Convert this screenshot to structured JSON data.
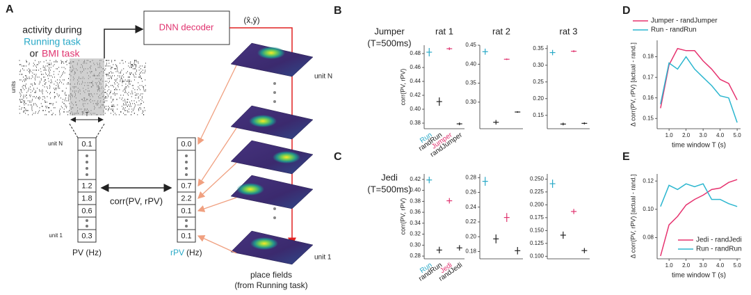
{
  "panel_letters": [
    "A",
    "B",
    "C",
    "D",
    "E"
  ],
  "panel_a": {
    "activity": [
      "activity during",
      "Running task",
      "or",
      "BMI task"
    ],
    "units_label": "units",
    "window": "T",
    "decoder": "DNN decoder",
    "output": "(x̂,ŷ)",
    "pv_units": [
      "unit N",
      "unit 1"
    ],
    "pv": [
      "0.1",
      "1.2",
      "1.8",
      "0.6",
      "0.3"
    ],
    "rpv": [
      "0.0",
      "0.7",
      "2.2",
      "0.1",
      "0.1"
    ],
    "corr": "corr(PV, rPV)",
    "pv_label": "PV (Hz)",
    "rpv_label": "rPV",
    "rpv_unit": "(Hz)",
    "stack_units": [
      "unit N",
      "unit 1"
    ],
    "place_fields": [
      "place fields",
      "(from Running task)"
    ]
  },
  "row_labels": [
    [
      "Jumper",
      "(T=500ms)"
    ],
    [
      "Jedi",
      "(T=500ms)"
    ]
  ],
  "chart_data": [
    {
      "type": "errorbar",
      "title": "rat 1",
      "ylabel": "corr(PV, rPV)",
      "categories": [
        "Run",
        "randRun",
        "Jumper",
        "randJumper"
      ],
      "colors": [
        "#29a9c7",
        "#222222",
        "#e0336f",
        "#222222"
      ],
      "values": [
        0.482,
        0.411,
        0.487,
        0.379
      ],
      "errors": [
        0.006,
        0.006,
        0.002,
        0.002
      ],
      "ylim": [
        0.372,
        0.492
      ],
      "yticks": [
        0.38,
        {
          "value": 0.4,
          "label": "0.40"
        },
        0.42,
        0.44,
        0.46,
        0.48
      ]
    },
    {
      "type": "errorbar",
      "title": "rat 2",
      "categories": [
        null,
        null,
        null,
        null
      ],
      "colors": [
        "#29a9c7",
        "#222222",
        "#e0336f",
        "#222222"
      ],
      "values": [
        0.433,
        0.247,
        0.413,
        0.274
      ],
      "errors": [
        0.008,
        0.006,
        0.002,
        0.002
      ],
      "ylim": [
        0.23,
        0.45
      ],
      "yticks": [
        {
          "value": 0.3,
          "label": "0.30"
        },
        0.35,
        {
          "value": 0.4,
          "label": "0.40"
        },
        0.45
      ]
    },
    {
      "type": "errorbar",
      "title": "rat 3",
      "categories": [
        null,
        null,
        null,
        null
      ],
      "colors": [
        "#29a9c7",
        "#222222",
        "#e0336f",
        "#222222"
      ],
      "values": [
        0.338,
        0.124,
        0.342,
        0.126
      ],
      "errors": [
        0.008,
        0.004,
        0.003,
        0.003
      ],
      "ylim": [
        0.11,
        0.36
      ],
      "yticks": [
        0.15,
        {
          "value": 0.2,
          "label": "0.20"
        },
        0.25,
        {
          "value": 0.3,
          "label": "0.30"
        },
        0.35
      ]
    },
    {
      "type": "errorbar",
      "ylabel": "corr(PV, rPV)",
      "categories": [
        "Run",
        "randRun",
        "Jedi",
        "randJedi"
      ],
      "colors": [
        "#29a9c7",
        "#222222",
        "#e0336f",
        "#222222"
      ],
      "values": [
        0.419,
        0.291,
        0.381,
        0.295
      ],
      "errors": [
        0.006,
        0.006,
        0.005,
        0.005
      ],
      "ylim": [
        0.275,
        0.43
      ],
      "yticks": [
        0.28,
        {
          "value": 0.3,
          "label": "0.30"
        },
        0.32,
        0.34,
        0.36,
        0.38,
        {
          "value": 0.4,
          "label": "0.40"
        },
        0.42
      ]
    },
    {
      "type": "errorbar",
      "categories": [
        null,
        null,
        null,
        null
      ],
      "colors": [
        "#29a9c7",
        "#222222",
        "#e0336f",
        "#222222"
      ],
      "values": [
        0.275,
        0.197,
        0.226,
        0.181
      ],
      "errors": [
        0.006,
        0.006,
        0.006,
        0.005
      ],
      "ylim": [
        0.17,
        0.285
      ],
      "yticks": [
        0.18,
        {
          "value": 0.2,
          "label": "0.20"
        },
        0.22,
        0.24,
        0.26,
        0.28
      ]
    },
    {
      "type": "errorbar",
      "categories": [
        null,
        null,
        null,
        null
      ],
      "colors": [
        "#29a9c7",
        "#222222",
        "#e0336f",
        "#222222"
      ],
      "values": [
        0.241,
        0.141,
        0.187,
        0.111
      ],
      "errors": [
        0.008,
        0.007,
        0.005,
        0.005
      ],
      "ylim": [
        0.095,
        0.26
      ],
      "yticks": [
        {
          "value": 0.1,
          "label": "0.100"
        },
        0.125,
        {
          "value": 0.15,
          "label": "0.150"
        },
        0.175,
        {
          "value": 0.2,
          "label": "0.200"
        },
        0.225,
        {
          "value": 0.25,
          "label": "0.250"
        }
      ]
    },
    {
      "type": "line",
      "ylabel": "Δ corr(PV, rPV)  [actual - rand.]",
      "xlabel": "time window T (s)",
      "legend": "top",
      "x": [
        0.5,
        1,
        1.5,
        2,
        2.5,
        3,
        3.5,
        4,
        4.5,
        5
      ],
      "series": [
        {
          "name": "Jumper - randJumper",
          "color": "#e6336f",
          "values": [
            0.155,
            0.176,
            0.184,
            0.183,
            0.183,
            0.178,
            0.174,
            0.169,
            0.167,
            0.159
          ]
        },
        {
          "name": "Run - randRun",
          "color": "#2bb6cf",
          "values": [
            0.157,
            0.177,
            0.174,
            0.18,
            0.174,
            0.17,
            0.166,
            0.161,
            0.16,
            0.148
          ]
        }
      ],
      "xlim": [
        0.3,
        5.2
      ],
      "xticks": [
        {
          "value": 1,
          "label": "1.0"
        },
        {
          "value": 2,
          "label": "2.0"
        },
        {
          "value": 3,
          "label": "3.0"
        },
        {
          "value": 4,
          "label": "4.0"
        },
        {
          "value": 5,
          "label": "5.0"
        }
      ],
      "ylim": [
        0.145,
        0.188
      ],
      "yticks": [
        0.15,
        0.16,
        0.17,
        0.18
      ]
    },
    {
      "type": "line",
      "ylabel": "Δ corr(PV, rPV)  [actual - rand.]",
      "xlabel": "time window T (s)",
      "legend": "lower right",
      "x": [
        0.5,
        1,
        1.5,
        2,
        2.5,
        3,
        3.5,
        4,
        4.5,
        5
      ],
      "series": [
        {
          "name": "Jedi - randJedi",
          "color": "#e6336f",
          "values": [
            0.067,
            0.089,
            0.095,
            0.103,
            0.107,
            0.11,
            0.114,
            0.115,
            0.119,
            0.121
          ]
        },
        {
          "name": "Run - randRun",
          "color": "#2bb6cf",
          "values": [
            0.102,
            0.117,
            0.114,
            0.118,
            0.116,
            0.118,
            0.107,
            0.107,
            0.104,
            0.102
          ]
        }
      ],
      "xlim": [
        0.3,
        5.2
      ],
      "xticks": [
        {
          "value": 1,
          "label": "1.0"
        },
        {
          "value": 2,
          "label": "2.0"
        },
        {
          "value": 3,
          "label": "3.0"
        },
        {
          "value": 4,
          "label": "4.0"
        },
        {
          "value": 5,
          "label": "5.0"
        }
      ],
      "ylim": [
        0.065,
        0.125
      ],
      "yticks": [
        0.08,
        {
          "value": 0.1,
          "label": "0.10"
        },
        0.12
      ]
    }
  ]
}
